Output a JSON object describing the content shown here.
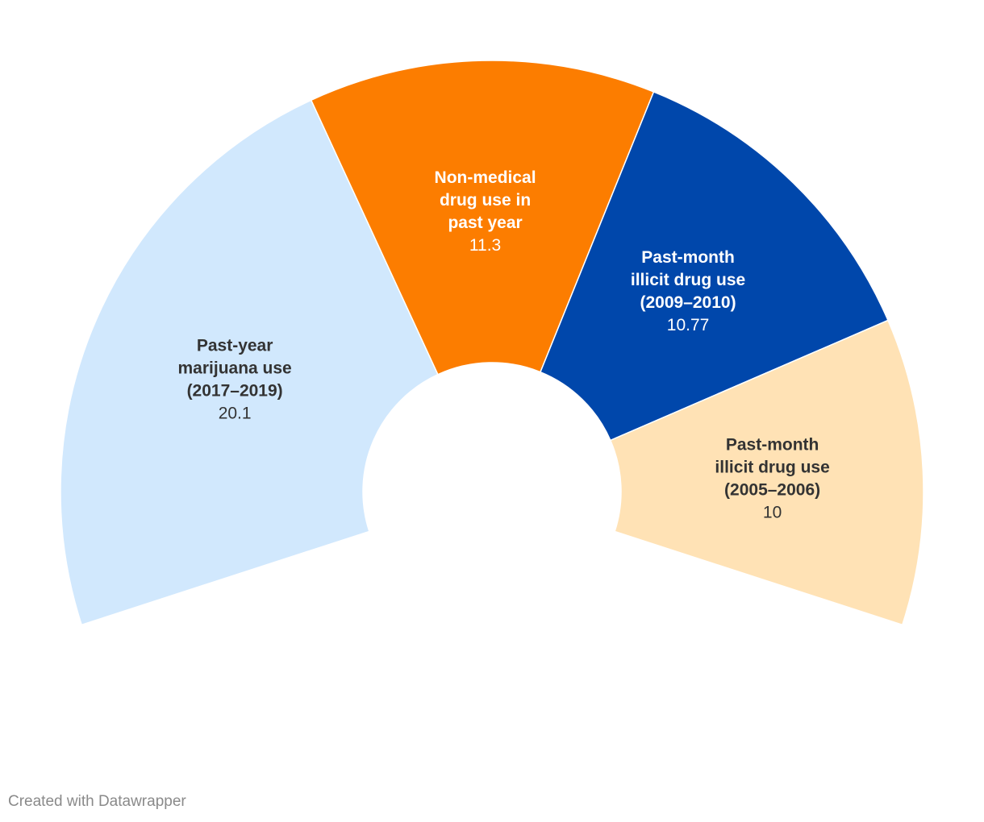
{
  "chart_data": {
    "type": "pie",
    "variant": "semi-donut",
    "slices": [
      {
        "label_lines": [
          "Past-year",
          "marijuana use",
          "(2017–2019)"
        ],
        "value": 20.1,
        "value_label": "20.1",
        "color": "#d1e8fd",
        "text_color": "#333333"
      },
      {
        "label_lines": [
          "Non-medical",
          "drug use in",
          "past year"
        ],
        "value": 11.3,
        "value_label": "11.3",
        "color": "#fc7d00",
        "text_color": "#ffffff"
      },
      {
        "label_lines": [
          "Past-month",
          "illicit drug use",
          "(2009–2010)"
        ],
        "value": 10.77,
        "value_label": "10.77",
        "color": "#0047ab",
        "text_color": "#ffffff"
      },
      {
        "label_lines": [
          "Past-month",
          "illicit drug use",
          "(2005–2006)"
        ],
        "value": 10,
        "value_label": "10",
        "color": "#ffe2b5",
        "text_color": "#333333"
      }
    ]
  },
  "footer": {
    "credit": "Created with Datawrapper"
  }
}
